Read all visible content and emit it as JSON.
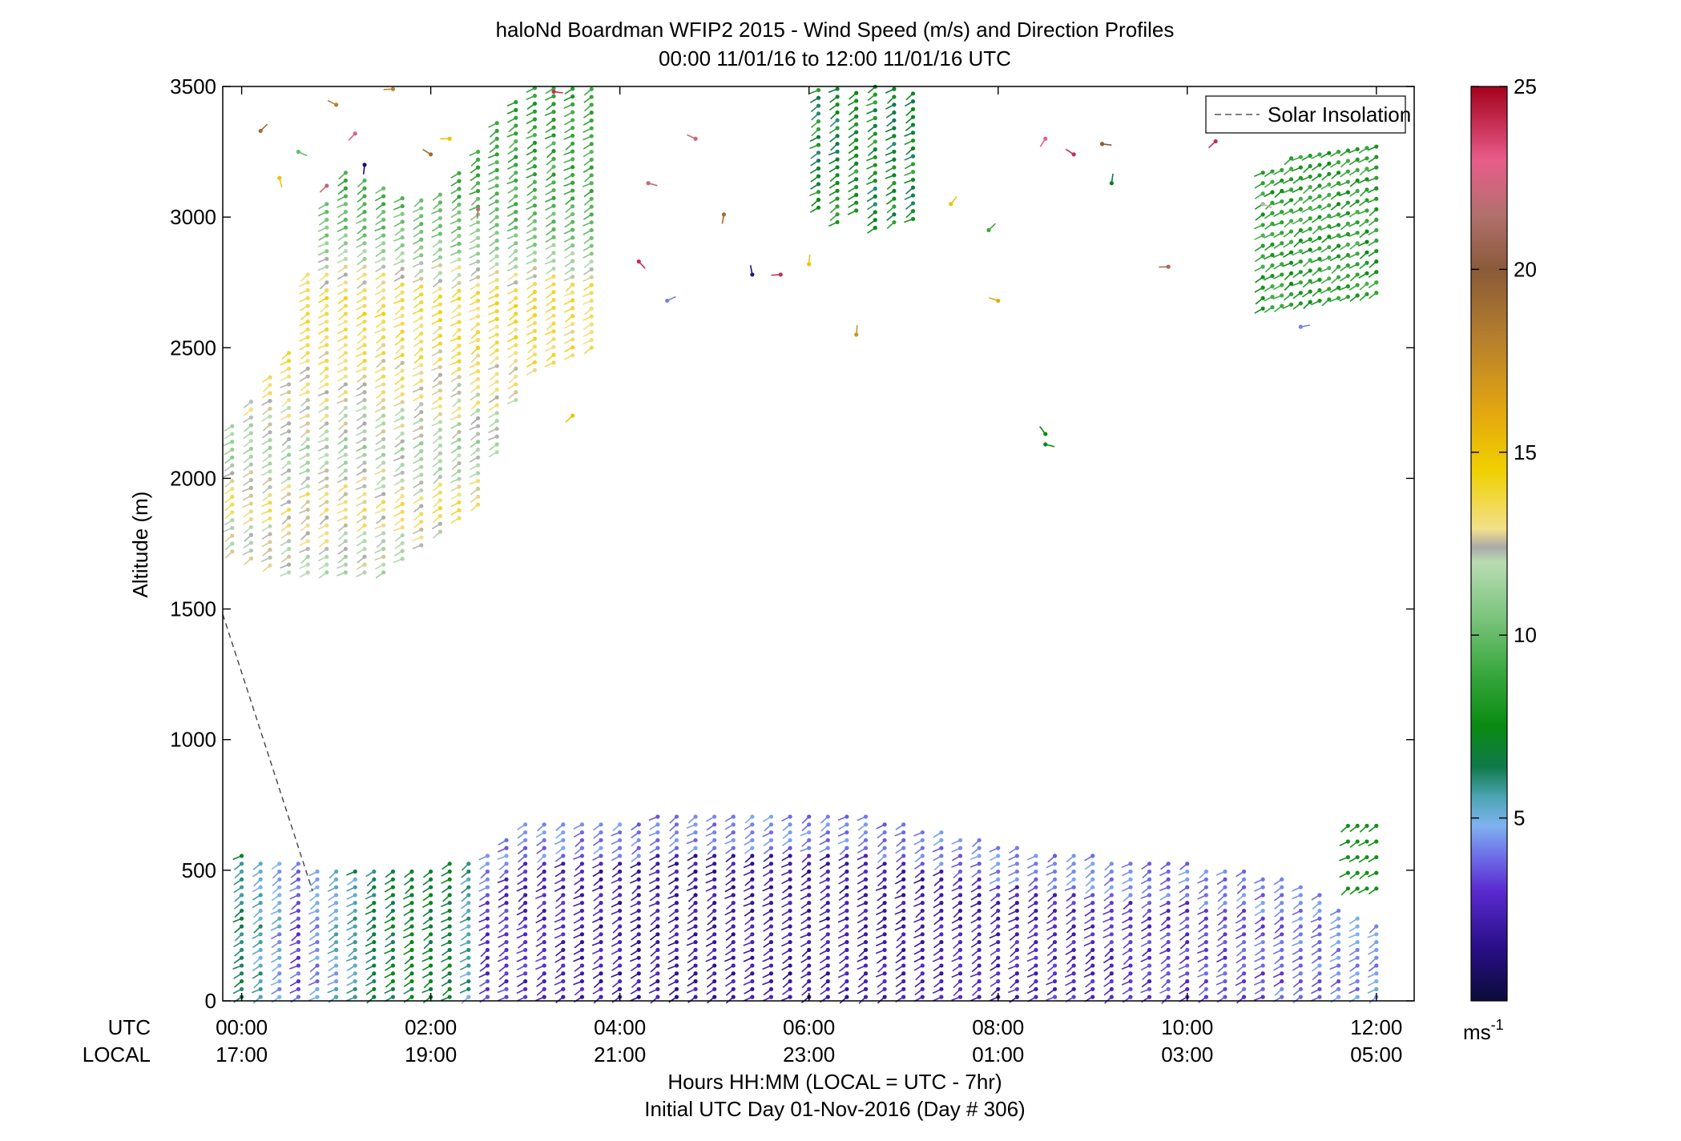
{
  "chart_data": {
    "type": "scatter",
    "title": "haloNd Boardman WFIP2 2015 - Wind Speed (m/s) and Direction Profiles",
    "subtitle": "00:00 11/01/16 to 12:00 11/01/16  UTC",
    "xlabel": "Hours HH:MM  (LOCAL = UTC - 7hr)",
    "xlabel2": "Initial UTC Day 01-Nov-2016 (Day # 306)",
    "ylabel": "Altitude (m)",
    "xlim": [
      -0.2,
      12.4
    ],
    "ylim": [
      0,
      3500
    ],
    "row_labels": {
      "utc": "UTC",
      "local": "LOCAL"
    },
    "x_ticks": [
      {
        "x": 0,
        "utc": "00:00",
        "local": "17:00"
      },
      {
        "x": 2,
        "utc": "02:00",
        "local": "19:00"
      },
      {
        "x": 4,
        "utc": "04:00",
        "local": "21:00"
      },
      {
        "x": 6,
        "utc": "06:00",
        "local": "23:00"
      },
      {
        "x": 8,
        "utc": "08:00",
        "local": "01:00"
      },
      {
        "x": 10,
        "utc": "10:00",
        "local": "03:00"
      },
      {
        "x": 12,
        "utc": "12:00",
        "local": "05:00"
      }
    ],
    "y_ticks": [
      0,
      500,
      1000,
      1500,
      2000,
      2500,
      3000,
      3500
    ],
    "colorbar": {
      "ticks": [
        5,
        10,
        15,
        20,
        25
      ],
      "range": [
        0,
        25
      ],
      "unit_base": "ms",
      "unit_exp": "-1",
      "stops": [
        [
          0,
          "#0b0b3a"
        ],
        [
          1.5,
          "#2a0f8a"
        ],
        [
          3,
          "#5a2ad0"
        ],
        [
          4,
          "#6f72e8"
        ],
        [
          4.8,
          "#7fb3f0"
        ],
        [
          5.6,
          "#4aa3b0"
        ],
        [
          6.4,
          "#0f7a4a"
        ],
        [
          7.5,
          "#0a8a12"
        ],
        [
          9,
          "#3aa83f"
        ],
        [
          10.5,
          "#7cc47e"
        ],
        [
          12,
          "#b9dcb3"
        ],
        [
          12.4,
          "#a9a9a9"
        ],
        [
          12.9,
          "#f3e08a"
        ],
        [
          14.5,
          "#f0d000"
        ],
        [
          16,
          "#e6a90f"
        ],
        [
          18,
          "#b8812c"
        ],
        [
          20,
          "#8a5a3a"
        ],
        [
          21.5,
          "#b2706e"
        ],
        [
          23,
          "#e85c8a"
        ],
        [
          25,
          "#a3001c"
        ]
      ]
    },
    "legend": {
      "label": "Solar Insolation",
      "position": "top-right"
    },
    "solar_insolation": {
      "x": [
        -0.2,
        0.75
      ],
      "y": [
        1480,
        420
      ]
    },
    "wind_profiles": {
      "time_step_hours": 0.2,
      "barb_length_hours": 0.1,
      "low_layer": {
        "t_start": 0,
        "t_end": 12,
        "z_start": 15,
        "z_step": 30,
        "z_top_by_time": [
          [
            0,
            560
          ],
          [
            0.5,
            540
          ],
          [
            1,
            500
          ],
          [
            2,
            520
          ],
          [
            2.5,
            560
          ],
          [
            3,
            680
          ],
          [
            5,
            720
          ],
          [
            6,
            730
          ],
          [
            7,
            690
          ],
          [
            8,
            600
          ],
          [
            9,
            560
          ],
          [
            10,
            530
          ],
          [
            11,
            480
          ],
          [
            12,
            300
          ]
        ],
        "speed_by_time": [
          [
            0,
            6.2
          ],
          [
            0.3,
            5.2
          ],
          [
            0.6,
            3.6
          ],
          [
            1.5,
            6.8
          ],
          [
            2.3,
            6.9
          ],
          [
            2.6,
            3.0
          ],
          [
            4,
            2.2
          ],
          [
            6,
            2.0
          ],
          [
            8,
            2.6
          ],
          [
            10,
            3.2
          ],
          [
            11.5,
            4.0
          ],
          [
            12,
            4.5
          ]
        ],
        "upper_green_patch": {
          "t": [
            11.7,
            12.05
          ],
          "z": [
            430,
            700
          ],
          "speed": 7.8
        }
      },
      "upper_layer": {
        "t_start": -0.1,
        "t_end": 3.7,
        "z_step": 30,
        "z_bottom_by_time": [
          [
            -0.1,
            1720
          ],
          [
            0.5,
            1640
          ],
          [
            1.5,
            1640
          ],
          [
            2.5,
            1900
          ],
          [
            3.0,
            2400
          ],
          [
            3.7,
            2500
          ]
        ],
        "z_top_by_time": [
          [
            -0.1,
            2200
          ],
          [
            0.5,
            2500
          ],
          [
            1.0,
            3200
          ],
          [
            2.0,
            3050
          ],
          [
            3.0,
            3500
          ],
          [
            3.7,
            3500
          ]
        ],
        "speed_profile": [
          [
            1700,
            12.0
          ],
          [
            1900,
            13.2
          ],
          [
            2100,
            11.5
          ],
          [
            2300,
            12.6
          ],
          [
            2500,
            13.5
          ],
          [
            2700,
            13.8
          ],
          [
            2900,
            10.8
          ],
          [
            3100,
            9.4
          ],
          [
            3300,
            8.8
          ],
          [
            3500,
            8.5
          ]
        ]
      },
      "upper_mid_cluster": {
        "t": [
          6.1,
          7.2
        ],
        "z": [
          2950,
          3500
        ],
        "speed": 7.5
      },
      "upper_right_cluster": {
        "t": [
          10.8,
          12.0
        ],
        "z_bottom": [
          2650,
          2850
        ],
        "z_top": [
          3200,
          3300
        ],
        "speed": 8.5
      },
      "scattered": [
        {
          "t": 0.2,
          "z": 3330,
          "s": 19
        },
        {
          "t": 0.4,
          "z": 3150,
          "s": 15
        },
        {
          "t": 0.6,
          "z": 3250,
          "s": 10
        },
        {
          "t": 0.9,
          "z": 3120,
          "s": 22
        },
        {
          "t": 1.0,
          "z": 3430,
          "s": 18
        },
        {
          "t": 1.2,
          "z": 3320,
          "s": 23
        },
        {
          "t": 1.3,
          "z": 3200,
          "s": 1.0
        },
        {
          "t": 1.6,
          "z": 3490,
          "s": 18
        },
        {
          "t": 2.0,
          "z": 3240,
          "s": 19
        },
        {
          "t": 2.2,
          "z": 3300,
          "s": 15
        },
        {
          "t": 2.5,
          "z": 3030,
          "s": 22
        },
        {
          "t": 3.3,
          "z": 3480,
          "s": 24
        },
        {
          "t": 3.5,
          "z": 2240,
          "s": 15
        },
        {
          "t": 4.2,
          "z": 2830,
          "s": 24
        },
        {
          "t": 4.3,
          "z": 3130,
          "s": 22
        },
        {
          "t": 4.5,
          "z": 2680,
          "s": 4.2
        },
        {
          "t": 4.8,
          "z": 3300,
          "s": 22
        },
        {
          "t": 5.1,
          "z": 3010,
          "s": 19
        },
        {
          "t": 5.4,
          "z": 2780,
          "s": 1.5
        },
        {
          "t": 5.7,
          "z": 2780,
          "s": 24
        },
        {
          "t": 6.0,
          "z": 2820,
          "s": 15
        },
        {
          "t": 6.5,
          "z": 2550,
          "s": 17
        },
        {
          "t": 7.5,
          "z": 3050,
          "s": 15
        },
        {
          "t": 7.9,
          "z": 2950,
          "s": 9
        },
        {
          "t": 8.0,
          "z": 2680,
          "s": 16
        },
        {
          "t": 8.5,
          "z": 3300,
          "s": 23
        },
        {
          "t": 8.8,
          "z": 3240,
          "s": 24
        },
        {
          "t": 9.1,
          "z": 3280,
          "s": 20
        },
        {
          "t": 9.2,
          "z": 3130,
          "s": 7
        },
        {
          "t": 9.8,
          "z": 2810,
          "s": 21
        },
        {
          "t": 10.3,
          "z": 3290,
          "s": 24
        },
        {
          "t": 8.5,
          "z": 2170,
          "s": 7.5
        },
        {
          "t": 8.5,
          "z": 2130,
          "s": 7.5
        },
        {
          "t": 11.2,
          "z": 2580,
          "s": 4.2
        },
        {
          "t": 10.8,
          "z": 3050,
          "s": 12.5
        }
      ]
    }
  }
}
